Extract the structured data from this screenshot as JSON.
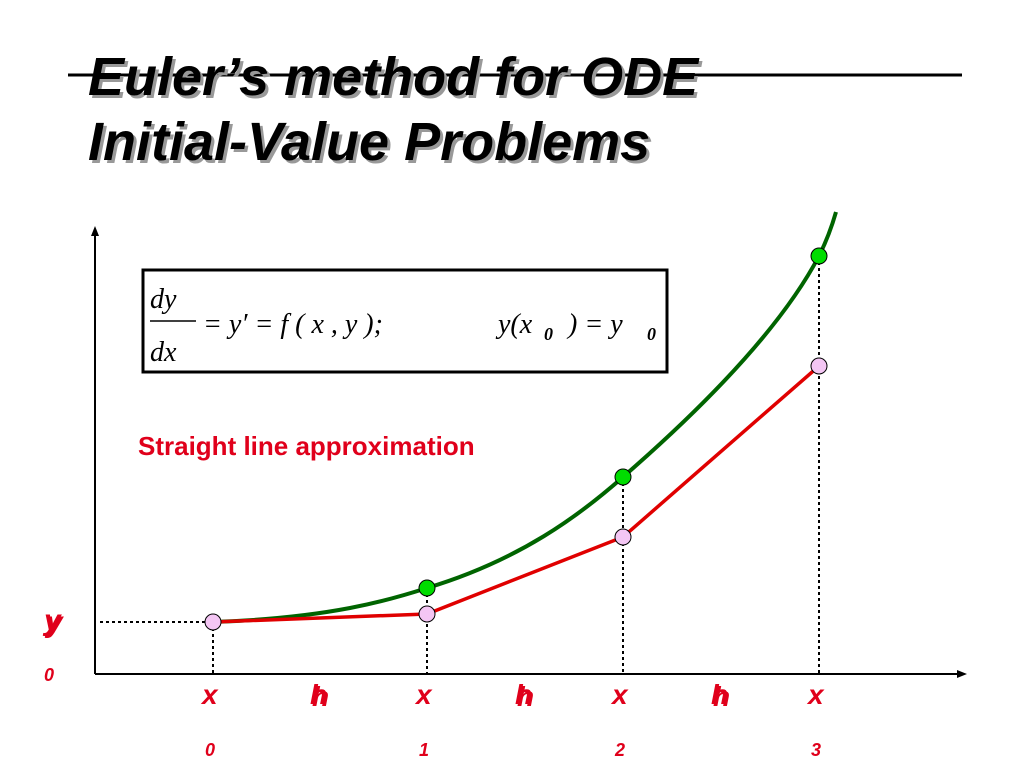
{
  "title": {
    "lines": [
      "Euler’s method for ODE",
      "Initial-Value Problems"
    ]
  },
  "equation": {
    "numerator": "dy",
    "denominator": "dx",
    "rhs": "= y′ = f ( x , y );",
    "initial": "y(x",
    "initial_sub": "0",
    "initial_rhs": ") = y",
    "initial_rhs_sub": "0"
  },
  "annotation": "Straight line approximation",
  "y_axis_label": {
    "text": "y",
    "subscript": "0"
  },
  "x_axis_labels": [
    {
      "text": "x",
      "subscript": "0"
    },
    {
      "text": "x",
      "subscript": "1"
    },
    {
      "text": "x",
      "subscript": "2"
    },
    {
      "text": "x",
      "subscript": "3"
    }
  ],
  "step_labels": [
    "h",
    "h",
    "h"
  ]
}
